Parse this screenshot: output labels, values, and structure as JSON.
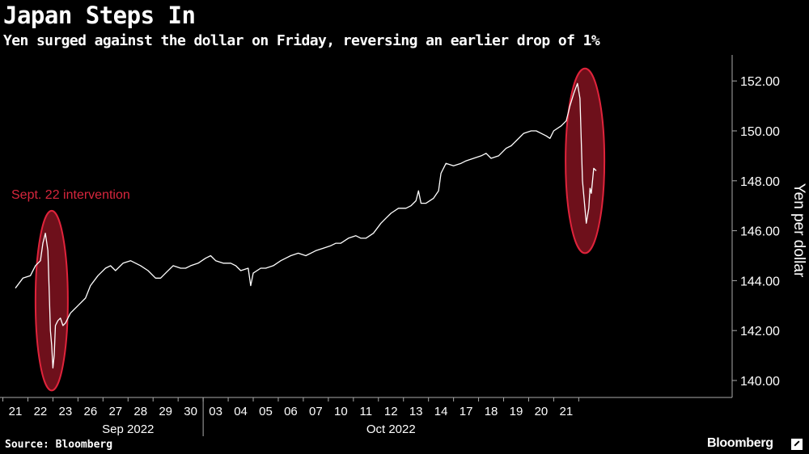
{
  "chart_data": {
    "type": "line",
    "title": "Japan Steps In",
    "subtitle": "Yen surged against the dollar on Friday, reversing an earlier drop of 1%",
    "ylabel": "Yen per dollar",
    "ylim": [
      139.5,
      153
    ],
    "yticks": [
      "140.00",
      "142.00",
      "144.00",
      "146.00",
      "148.00",
      "150.00",
      "152.00"
    ],
    "xticks": [
      "21",
      "22",
      "23",
      "26",
      "27",
      "28",
      "29",
      "30",
      "03",
      "04",
      "05",
      "06",
      "07",
      "10",
      "11",
      "12",
      "13",
      "14",
      "17",
      "18",
      "19",
      "20",
      "21"
    ],
    "month_labels": [
      {
        "label": "Sep 2022",
        "center_index": 4.5
      },
      {
        "label": "Oct 2022",
        "center_index": 15.0
      }
    ],
    "annotation": "Sept. 22 intervention",
    "grid": false,
    "axis_position": "right",
    "series": [
      {
        "values": [
          [
            0.0,
            143.7
          ],
          [
            0.3,
            144.1
          ],
          [
            0.6,
            144.2
          ],
          [
            0.8,
            144.6
          ],
          [
            1.0,
            144.8
          ],
          [
            1.1,
            145.5
          ],
          [
            1.2,
            145.9
          ],
          [
            1.3,
            145.2
          ],
          [
            1.35,
            143.6
          ],
          [
            1.4,
            142.0
          ],
          [
            1.45,
            141.4
          ],
          [
            1.5,
            140.5
          ],
          [
            1.55,
            141.0
          ],
          [
            1.6,
            142.2
          ],
          [
            1.7,
            142.4
          ],
          [
            1.8,
            142.5
          ],
          [
            1.9,
            142.2
          ],
          [
            2.0,
            142.3
          ],
          [
            2.2,
            142.7
          ],
          [
            2.5,
            143.0
          ],
          [
            2.8,
            143.3
          ],
          [
            3.0,
            143.8
          ],
          [
            3.3,
            144.2
          ],
          [
            3.6,
            144.5
          ],
          [
            3.8,
            144.6
          ],
          [
            4.0,
            144.4
          ],
          [
            4.3,
            144.7
          ],
          [
            4.6,
            144.8
          ],
          [
            4.8,
            144.7
          ],
          [
            5.0,
            144.6
          ],
          [
            5.3,
            144.4
          ],
          [
            5.6,
            144.1
          ],
          [
            5.8,
            144.1
          ],
          [
            6.0,
            144.3
          ],
          [
            6.3,
            144.6
          ],
          [
            6.6,
            144.5
          ],
          [
            6.8,
            144.5
          ],
          [
            7.0,
            144.6
          ],
          [
            7.3,
            144.7
          ],
          [
            7.6,
            144.9
          ],
          [
            7.8,
            145.0
          ],
          [
            8.0,
            144.8
          ],
          [
            8.3,
            144.7
          ],
          [
            8.6,
            144.7
          ],
          [
            8.8,
            144.6
          ],
          [
            9.0,
            144.4
          ],
          [
            9.3,
            144.5
          ],
          [
            9.4,
            143.8
          ],
          [
            9.5,
            144.3
          ],
          [
            9.8,
            144.5
          ],
          [
            10.0,
            144.5
          ],
          [
            10.3,
            144.6
          ],
          [
            10.6,
            144.8
          ],
          [
            10.8,
            144.9
          ],
          [
            11.0,
            145.0
          ],
          [
            11.3,
            145.1
          ],
          [
            11.6,
            145.0
          ],
          [
            11.8,
            145.1
          ],
          [
            12.0,
            145.2
          ],
          [
            12.3,
            145.3
          ],
          [
            12.6,
            145.4
          ],
          [
            12.8,
            145.5
          ],
          [
            13.0,
            145.5
          ],
          [
            13.3,
            145.7
          ],
          [
            13.6,
            145.8
          ],
          [
            13.8,
            145.7
          ],
          [
            14.0,
            145.7
          ],
          [
            14.3,
            145.9
          ],
          [
            14.6,
            146.3
          ],
          [
            14.8,
            146.5
          ],
          [
            15.0,
            146.7
          ],
          [
            15.3,
            146.9
          ],
          [
            15.6,
            146.9
          ],
          [
            15.8,
            147.0
          ],
          [
            16.0,
            147.2
          ],
          [
            16.1,
            147.6
          ],
          [
            16.2,
            147.1
          ],
          [
            16.4,
            147.1
          ],
          [
            16.7,
            147.3
          ],
          [
            16.9,
            147.6
          ],
          [
            17.0,
            148.3
          ],
          [
            17.2,
            148.7
          ],
          [
            17.5,
            148.6
          ],
          [
            17.8,
            148.7
          ],
          [
            18.0,
            148.8
          ],
          [
            18.3,
            148.9
          ],
          [
            18.6,
            149.0
          ],
          [
            18.8,
            149.1
          ],
          [
            19.0,
            148.9
          ],
          [
            19.3,
            149.0
          ],
          [
            19.6,
            149.3
          ],
          [
            19.8,
            149.4
          ],
          [
            20.0,
            149.6
          ],
          [
            20.3,
            149.9
          ],
          [
            20.6,
            150.0
          ],
          [
            20.8,
            150.0
          ],
          [
            21.0,
            149.9
          ],
          [
            21.2,
            149.8
          ],
          [
            21.35,
            149.7
          ],
          [
            21.5,
            150.0
          ],
          [
            21.8,
            150.2
          ],
          [
            22.0,
            150.4
          ],
          [
            22.15,
            151.0
          ],
          [
            22.3,
            151.5
          ],
          [
            22.45,
            151.9
          ],
          [
            22.55,
            151.3
          ],
          [
            22.65,
            148.0
          ],
          [
            22.72,
            147.2
          ],
          [
            22.8,
            146.3
          ],
          [
            22.9,
            146.9
          ],
          [
            22.95,
            147.7
          ],
          [
            23.0,
            147.5
          ],
          [
            23.1,
            148.5
          ],
          [
            23.2,
            148.4
          ]
        ]
      }
    ]
  },
  "footer": {
    "source": "Source: Bloomberg",
    "brand": "Bloomberg"
  }
}
